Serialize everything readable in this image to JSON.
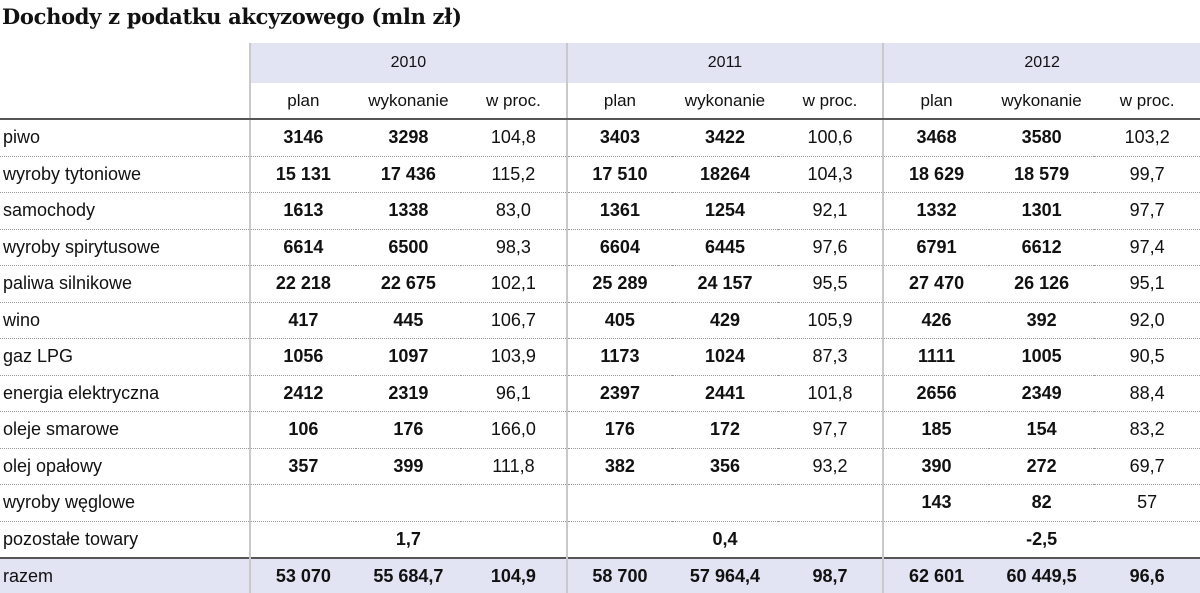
{
  "title": "Dochody z podatku akcyzowego (mln zł)",
  "years": [
    "2010",
    "2011",
    "2012"
  ],
  "subheaders": [
    "plan",
    "wykonanie",
    "w proc."
  ],
  "rows": [
    {
      "label": "piwo",
      "values": [
        "3146",
        "3298",
        "104,8",
        "3403",
        "3422",
        "100,6",
        "3468",
        "3580",
        "103,2"
      ]
    },
    {
      "label": "wyroby tytoniowe",
      "values": [
        "15 131",
        "17 436",
        "115,2",
        "17 510",
        "18264",
        "104,3",
        "18 629",
        "18 579",
        "99,7"
      ]
    },
    {
      "label": "samochody",
      "values": [
        "1613",
        "1338",
        "83,0",
        "1361",
        "1254",
        "92,1",
        "1332",
        "1301",
        "97,7"
      ]
    },
    {
      "label": "wyroby spirytusowe",
      "values": [
        "6614",
        "6500",
        "98,3",
        "6604",
        "6445",
        "97,6",
        "6791",
        "6612",
        "97,4"
      ]
    },
    {
      "label": "paliwa silnikowe",
      "values": [
        "22 218",
        "22 675",
        "102,1",
        "25 289",
        "24 157",
        "95,5",
        "27 470",
        "26 126",
        "95,1"
      ]
    },
    {
      "label": "wino",
      "values": [
        "417",
        "445",
        "106,7",
        "405",
        "429",
        "105,9",
        "426",
        "392",
        "92,0"
      ]
    },
    {
      "label": "gaz LPG",
      "values": [
        "1056",
        "1097",
        "103,9",
        "1173",
        "1024",
        "87,3",
        "1111",
        "1005",
        "90,5"
      ]
    },
    {
      "label": "energia elektryczna",
      "values": [
        "2412",
        "2319",
        "96,1",
        "2397",
        "2441",
        "101,8",
        "2656",
        "2349",
        "88,4"
      ]
    },
    {
      "label": "oleje smarowe",
      "values": [
        "106",
        "176",
        "166,0",
        "176",
        "172",
        "97,7",
        "185",
        "154",
        "83,2"
      ]
    },
    {
      "label": "olej opałowy",
      "values": [
        "357",
        "399",
        "111,8",
        "382",
        "356",
        "93,2",
        "390",
        "272",
        "69,7"
      ]
    },
    {
      "label": "wyroby węglowe",
      "values": [
        "",
        "",
        "",
        "",
        "",
        "",
        "143",
        "82",
        "57"
      ]
    },
    {
      "label": "pozostałe towary",
      "values": [
        "",
        "1,7",
        "",
        "",
        "0,4",
        "",
        "",
        "-2,5",
        ""
      ]
    }
  ],
  "total": {
    "label": "razem",
    "values": [
      "53 070",
      "55 684,7",
      "104,9",
      "58 700",
      "57 964,4",
      "98,7",
      "62 601",
      "60 449,5",
      "96,6"
    ]
  }
}
